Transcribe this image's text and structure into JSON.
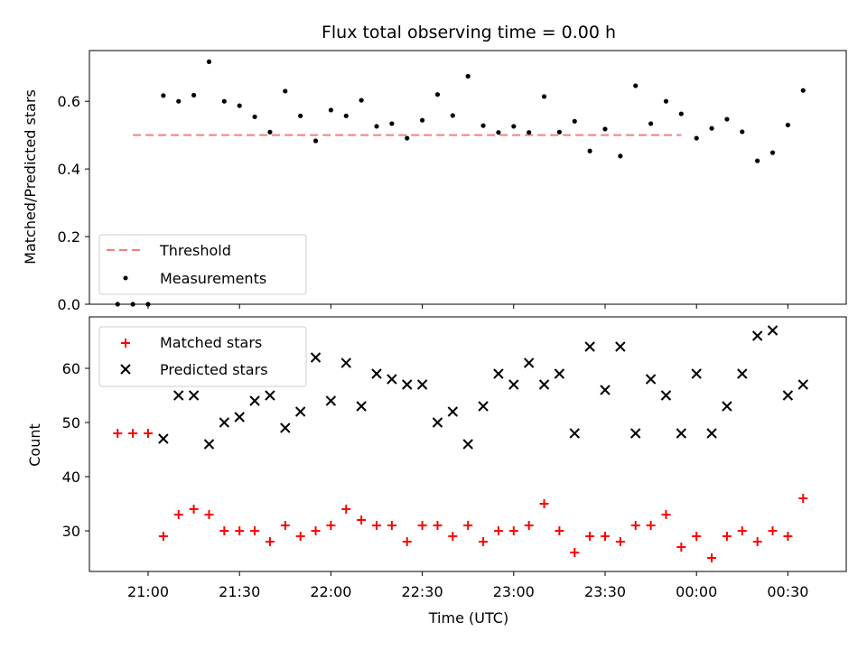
{
  "chart_data": [
    {
      "type": "scatter",
      "title": "Flux total observing time = 0.00 h",
      "ylabel": "Matched/Predicted stars",
      "xlabel": "",
      "ylim": [
        0,
        0.75
      ],
      "yticks": [
        "0.0",
        "0.2",
        "0.4",
        "0.6"
      ],
      "threshold": 0.5,
      "threshold_x": [
        "20:55",
        "23:55"
      ],
      "legend": {
        "placement": "lower-left",
        "entries": [
          "Threshold",
          "Measurements"
        ]
      },
      "colors": {
        "threshold": "#f08080",
        "measurements": "#000000"
      },
      "series": [
        {
          "name": "Measurements",
          "x": [
            "20:50",
            "20:55",
            "21:00",
            "21:05",
            "21:10",
            "21:15",
            "21:20",
            "21:25",
            "21:30",
            "21:35",
            "21:40",
            "21:45",
            "21:50",
            "21:55",
            "22:00",
            "22:05",
            "22:10",
            "22:15",
            "22:20",
            "22:25",
            "22:30",
            "22:35",
            "22:40",
            "22:45",
            "22:50",
            "22:55",
            "23:00",
            "23:05",
            "23:10",
            "23:15",
            "23:20",
            "23:25",
            "23:30",
            "23:35",
            "23:40",
            "23:45",
            "23:50",
            "23:55",
            "00:00",
            "00:05",
            "00:10",
            "00:15",
            "00:20",
            "00:25",
            "00:30",
            "00:35"
          ],
          "y": [
            0.0,
            0.0,
            0.0,
            0.617,
            0.6,
            0.618,
            0.717,
            0.6,
            0.587,
            0.554,
            0.509,
            0.63,
            0.557,
            0.483,
            0.574,
            0.557,
            0.603,
            0.526,
            0.534,
            0.491,
            0.544,
            0.62,
            0.558,
            0.674,
            0.528,
            0.508,
            0.526,
            0.508,
            0.614,
            0.509,
            0.541,
            0.453,
            0.518,
            0.438,
            0.646,
            0.534,
            0.6,
            0.563,
            0.491,
            0.52,
            0.547,
            0.51,
            0.424,
            0.448,
            0.53,
            0.632
          ]
        }
      ]
    },
    {
      "type": "scatter",
      "title": "",
      "ylabel": "Count",
      "xlabel": "Time (UTC)",
      "ylim": [
        22.5,
        69.5
      ],
      "yticks": [
        "30",
        "40",
        "50",
        "60"
      ],
      "xticks": [
        "21:00",
        "21:30",
        "22:00",
        "22:30",
        "23:00",
        "23:30",
        "00:00",
        "00:30"
      ],
      "legend": {
        "placement": "upper-left",
        "entries": [
          "Matched stars",
          "Predicted stars"
        ]
      },
      "colors": {
        "matched": "#ff0000",
        "predicted": "#000000"
      },
      "series": [
        {
          "name": "Matched stars",
          "x": [
            "20:50",
            "20:55",
            "21:00",
            "21:05",
            "21:10",
            "21:15",
            "21:20",
            "21:25",
            "21:30",
            "21:35",
            "21:40",
            "21:45",
            "21:50",
            "21:55",
            "22:00",
            "22:05",
            "22:10",
            "22:15",
            "22:20",
            "22:25",
            "22:30",
            "22:35",
            "22:40",
            "22:45",
            "22:50",
            "22:55",
            "23:00",
            "23:05",
            "23:10",
            "23:15",
            "23:20",
            "23:25",
            "23:30",
            "23:35",
            "23:40",
            "23:45",
            "23:50",
            "23:55",
            "00:00",
            "00:05",
            "00:10",
            "00:15",
            "00:20",
            "00:25",
            "00:30",
            "00:35"
          ],
          "y": [
            48,
            48,
            48,
            29,
            33,
            34,
            33,
            30,
            30,
            30,
            28,
            31,
            29,
            30,
            31,
            34,
            32,
            31,
            31,
            28,
            31,
            31,
            29,
            31,
            28,
            30,
            30,
            31,
            35,
            30,
            26,
            29,
            29,
            28,
            31,
            31,
            33,
            27,
            29,
            25,
            29,
            30,
            28,
            30,
            29,
            36
          ]
        },
        {
          "name": "Predicted stars",
          "x": [
            "21:05",
            "21:10",
            "21:15",
            "21:20",
            "21:25",
            "21:30",
            "21:35",
            "21:40",
            "21:45",
            "21:50",
            "21:55",
            "22:00",
            "22:05",
            "22:10",
            "22:15",
            "22:20",
            "22:25",
            "22:30",
            "22:35",
            "22:40",
            "22:45",
            "22:50",
            "22:55",
            "23:00",
            "23:05",
            "23:10",
            "23:15",
            "23:20",
            "23:25",
            "23:30",
            "23:35",
            "23:40",
            "23:45",
            "23:50",
            "23:55",
            "00:00",
            "00:05",
            "00:10",
            "00:15",
            "00:20",
            "00:25",
            "00:30",
            "00:35"
          ],
          "y": [
            47,
            55,
            55,
            46,
            50,
            51,
            54,
            55,
            49,
            52,
            62,
            54,
            61,
            53,
            59,
            58,
            57,
            57,
            50,
            52,
            46,
            53,
            59,
            57,
            61,
            57,
            59,
            48,
            64,
            56,
            64,
            48,
            58,
            55,
            48,
            59,
            48,
            53,
            59,
            66,
            67,
            55,
            57
          ]
        }
      ]
    }
  ]
}
